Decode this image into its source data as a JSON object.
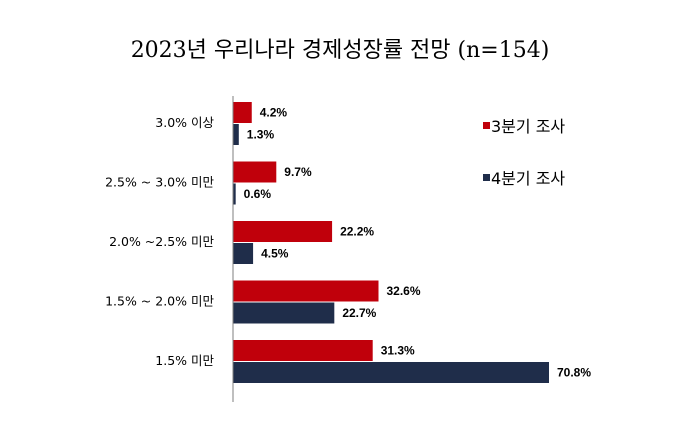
{
  "chart_data": {
    "type": "bar",
    "orientation": "horizontal",
    "title": "2023년 우리나라 경제성장률 전망 (n=154)",
    "categories": [
      "3.0% 이상",
      "2.5% ~ 3.0% 미만",
      "2.0% ~2.5% 미만",
      "1.5% ~ 2.0% 미만",
      "1.5% 미만"
    ],
    "series": [
      {
        "name": "3분기 조사",
        "color": "#c0000b",
        "values": [
          4.2,
          9.7,
          22.2,
          32.6,
          31.3
        ]
      },
      {
        "name": "4분기 조사",
        "color": "#1f2d4a",
        "values": [
          1.3,
          0.6,
          4.5,
          22.7,
          70.8
        ]
      }
    ],
    "value_suffix": "%",
    "xlim": [
      0,
      75
    ],
    "legend_position": "right",
    "grid": false
  }
}
